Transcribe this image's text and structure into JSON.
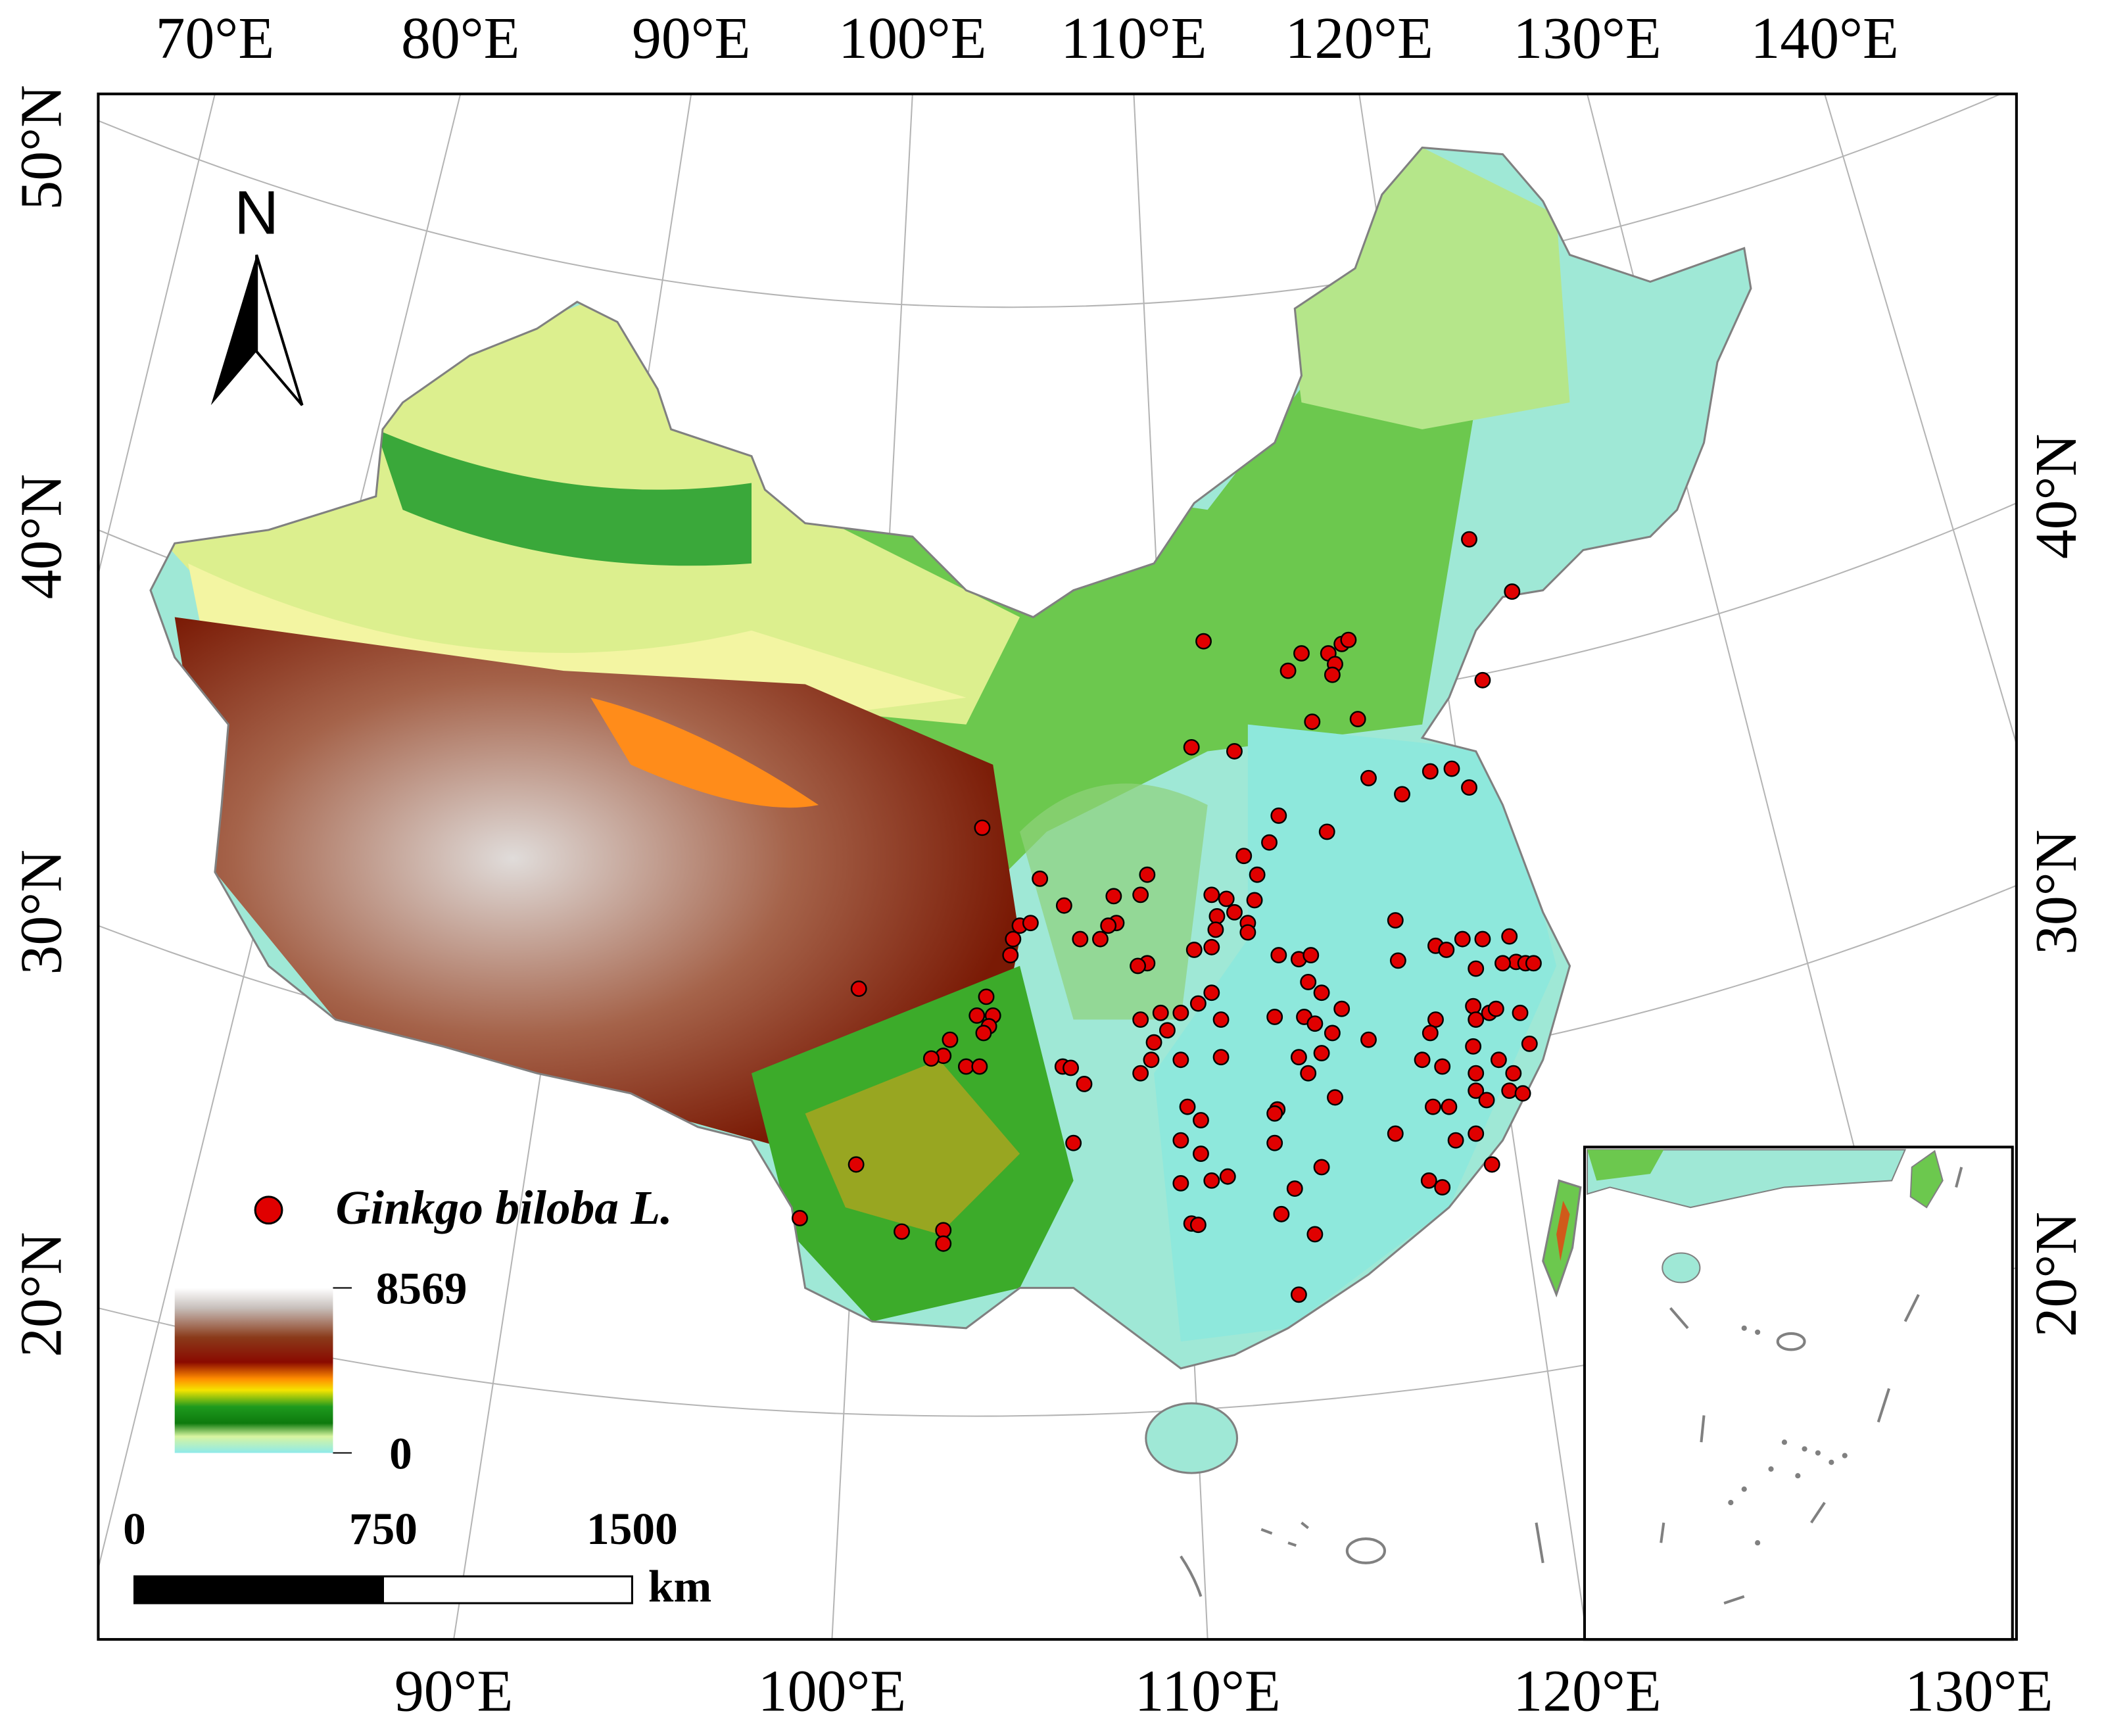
{
  "map": {
    "top_lon_labels": [
      "70°E",
      "80°E",
      "90°E",
      "100°E",
      "110°E",
      "120°E",
      "130°E",
      "140°E"
    ],
    "bottom_lon_labels": [
      "90°E",
      "100°E",
      "110°E",
      "120°E",
      "130°E"
    ],
    "left_lat_labels": [
      "50°N",
      "40°N",
      "30°N",
      "20°N"
    ],
    "right_lat_labels": [
      "40°N",
      "30°N",
      "20°N"
    ],
    "north_arrow": "N",
    "legend": {
      "label": "Ginkgo biloba L.",
      "elevation_max": 8569,
      "elevation_min": 0
    },
    "scale_bar": {
      "ticks": [
        0,
        750,
        1500
      ],
      "unit": "km"
    }
  }
}
